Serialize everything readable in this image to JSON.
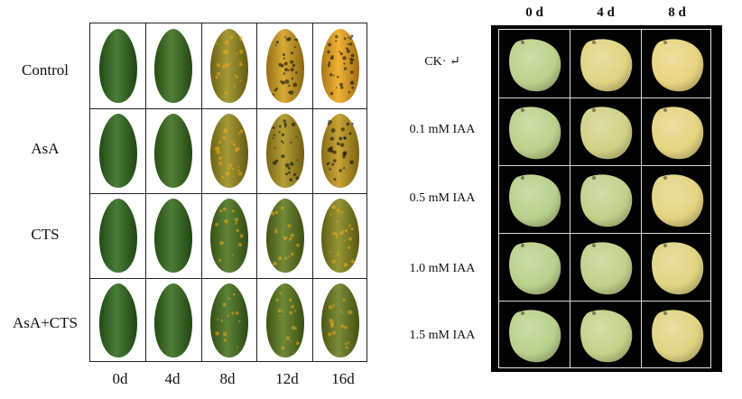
{
  "papaya": {
    "row_labels": [
      "Control",
      "AsA",
      "CTS",
      "AsA+CTS"
    ],
    "col_labels": [
      "0d",
      "4d",
      "8d",
      "12d",
      "16d"
    ],
    "ripeness": [
      [
        0.0,
        0.05,
        0.55,
        0.85,
        1.0
      ],
      [
        0.0,
        0.05,
        0.55,
        0.65,
        0.75
      ],
      [
        0.0,
        0.02,
        0.15,
        0.25,
        0.45
      ],
      [
        0.0,
        0.03,
        0.12,
        0.22,
        0.3
      ]
    ]
  },
  "mango": {
    "row_labels": [
      "CK· ↵",
      "0.1 mM IAA",
      "0.5 mM IAA",
      "1.0 mM IAA",
      "1.5 mM IAA"
    ],
    "col_labels": [
      "0 d",
      "4 d",
      "8 d"
    ],
    "ripeness": [
      [
        0.1,
        0.7,
        0.85
      ],
      [
        0.1,
        0.45,
        0.8
      ],
      [
        0.05,
        0.15,
        0.75
      ],
      [
        0.05,
        0.15,
        0.7
      ],
      [
        0.05,
        0.25,
        0.7
      ]
    ]
  },
  "colors": {
    "papaya_green": "#2f6a1c",
    "papaya_yellow": "#f0a81c",
    "mango_green": "#b7d08d",
    "mango_yellow": "#f1d57e",
    "mango_background": "#000000"
  }
}
